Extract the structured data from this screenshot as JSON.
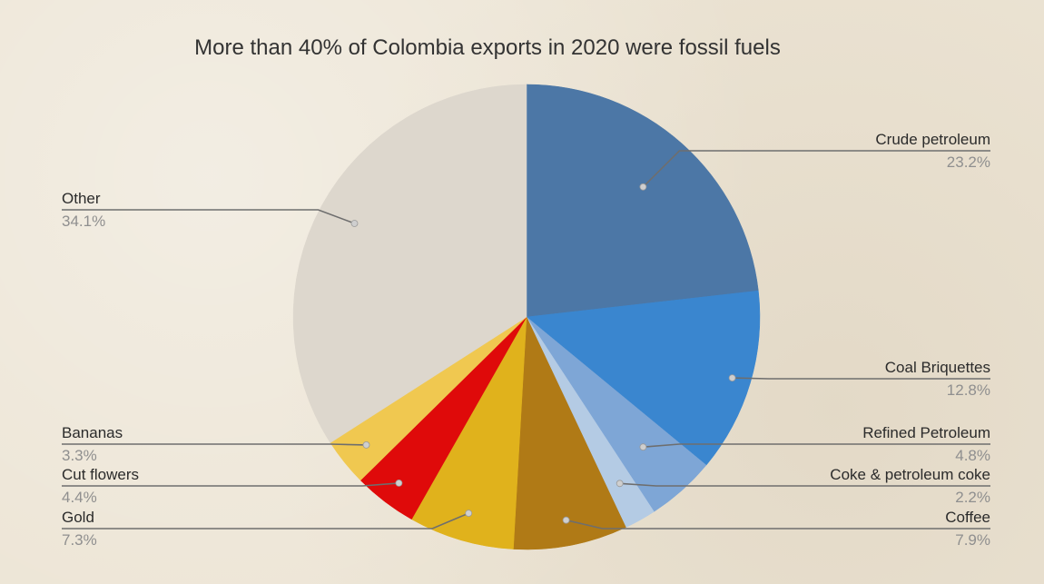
{
  "chart_data": {
    "type": "pie",
    "title": "More than 40% of Colombia exports in 2020 were fossil fuels",
    "slices": [
      {
        "label": "Crude petroleum",
        "value": "23.2%",
        "pct": 23.2,
        "color": "#4c77a6"
      },
      {
        "label": "Coal Briquettes",
        "value": "12.8%",
        "pct": 12.8,
        "color": "#3a86cf"
      },
      {
        "label": "Refined Petroleum",
        "value": "4.8%",
        "pct": 4.8,
        "color": "#7ea6d6"
      },
      {
        "label": "Coke & petroleum coke",
        "value": "2.2%",
        "pct": 2.2,
        "color": "#b4cbe4"
      },
      {
        "label": "Coffee",
        "value": "7.9%",
        "pct": 7.9,
        "color": "#b07a16"
      },
      {
        "label": "Gold",
        "value": "7.3%",
        "pct": 7.3,
        "color": "#e0b21c"
      },
      {
        "label": "Cut flowers",
        "value": "4.4%",
        "pct": 4.4,
        "color": "#df0a0a"
      },
      {
        "label": "Bananas",
        "value": "3.3%",
        "pct": 3.3,
        "color": "#f0c850"
      },
      {
        "label": "Other",
        "value": "34.1%",
        "pct": 34.1,
        "color": "#ddd7cd"
      }
    ]
  }
}
